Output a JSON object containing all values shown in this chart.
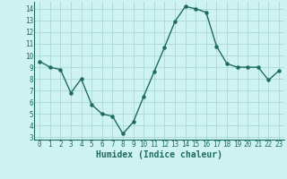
{
  "x": [
    0,
    1,
    2,
    3,
    4,
    5,
    6,
    7,
    8,
    9,
    10,
    11,
    12,
    13,
    14,
    15,
    16,
    17,
    18,
    19,
    20,
    21,
    22,
    23
  ],
  "y": [
    9.5,
    9.0,
    8.8,
    6.8,
    8.0,
    5.8,
    5.0,
    4.8,
    3.3,
    4.3,
    6.5,
    8.6,
    10.7,
    12.9,
    14.2,
    14.0,
    13.7,
    10.8,
    9.3,
    9.0,
    9.0,
    9.0,
    7.9,
    8.7
  ],
  "xlabel": "Humidex (Indice chaleur)",
  "ylim": [
    2.8,
    14.6
  ],
  "xlim": [
    -0.5,
    23.5
  ],
  "bg_color": "#cff3f3",
  "line_color": "#1e6b5e",
  "grid_color": "#a8d8d8",
  "xlabel_color": "#1e6b5e",
  "tick_color": "#1e6b5e",
  "yticks": [
    3,
    4,
    5,
    6,
    7,
    8,
    9,
    10,
    11,
    12,
    13,
    14
  ],
  "xticks": [
    0,
    1,
    2,
    3,
    4,
    5,
    6,
    7,
    8,
    9,
    10,
    11,
    12,
    13,
    14,
    15,
    16,
    17,
    18,
    19,
    20,
    21,
    22,
    23
  ],
  "tick_fontsize": 5.5,
  "xlabel_fontsize": 7.0
}
